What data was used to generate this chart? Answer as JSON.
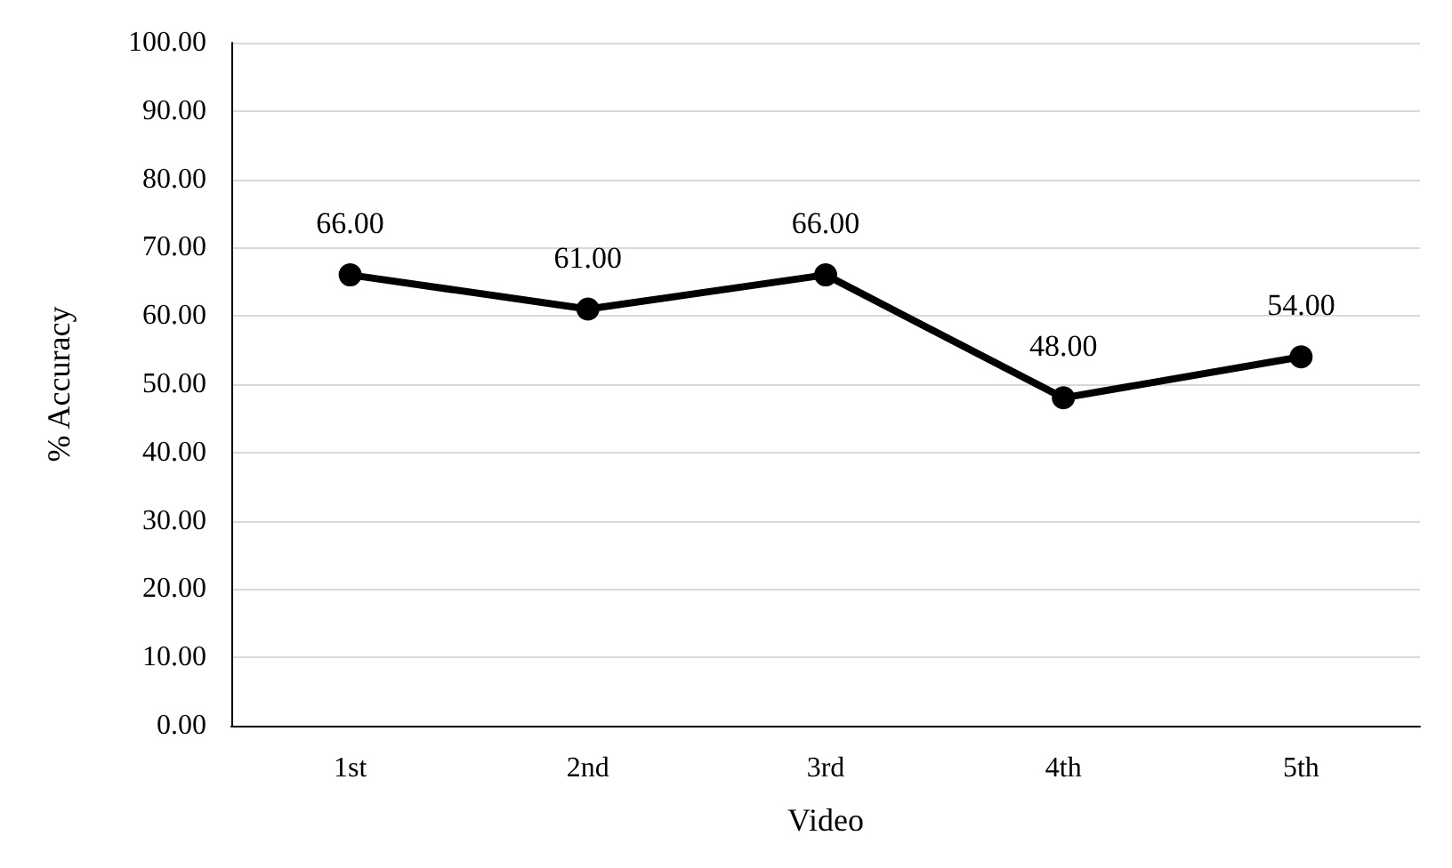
{
  "chart_data": {
    "type": "line",
    "xlabel": "Video",
    "ylabel": "% Accuracy",
    "categories": [
      "1st",
      "2nd",
      "3rd",
      "4th",
      "5th"
    ],
    "series": [
      {
        "color": "#000000",
        "values": [
          66,
          61,
          66,
          48,
          54
        ],
        "value_labels": [
          "66.00",
          "61.00",
          "66.00",
          "48.00",
          "54.00"
        ]
      }
    ],
    "ylim": [
      0,
      100
    ],
    "yticks": [
      {
        "value": 0,
        "label": "0.00"
      },
      {
        "value": 10,
        "label": "10.00"
      },
      {
        "value": 20,
        "label": "20.00"
      },
      {
        "value": 30,
        "label": "30.00"
      },
      {
        "value": 40,
        "label": "40.00"
      },
      {
        "value": 50,
        "label": "50.00"
      },
      {
        "value": 60,
        "label": "60.00"
      },
      {
        "value": 70,
        "label": "70.00"
      },
      {
        "value": 80,
        "label": "80.00"
      },
      {
        "value": 90,
        "label": "90.00"
      },
      {
        "value": 100,
        "label": "100.00"
      }
    ],
    "grid": "y",
    "marker": "circle",
    "line_style": "solid"
  }
}
